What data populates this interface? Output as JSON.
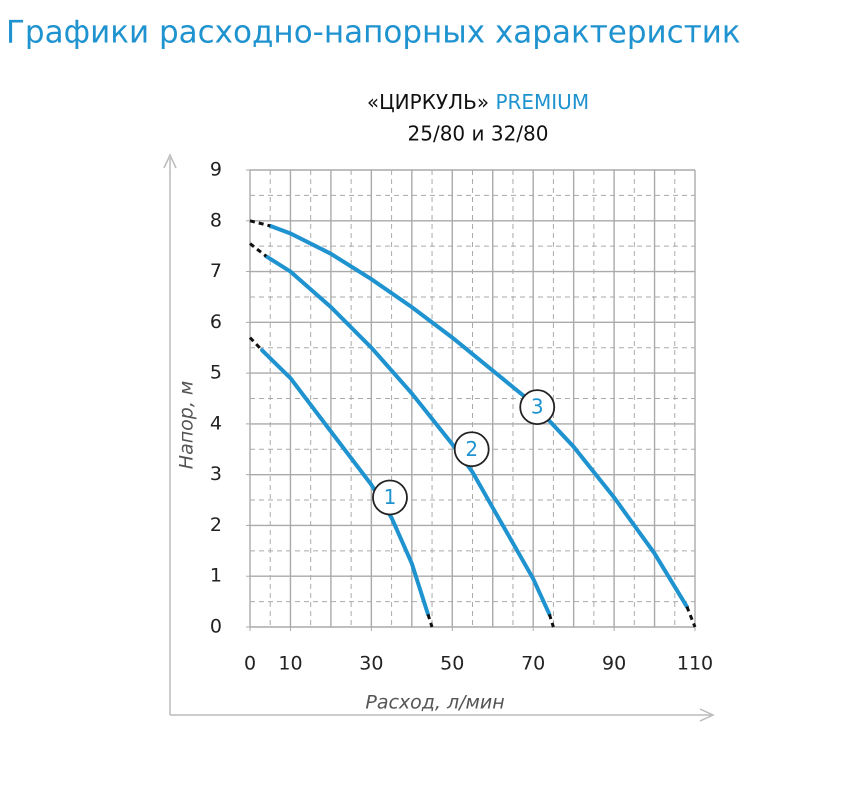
{
  "page_title": "Графики расходно-напорных характеристик",
  "chart_data": {
    "type": "line",
    "title_parts": [
      "«ЦИРКУЛЬ»",
      "PREMIUM"
    ],
    "subtitle": "25/80 и 32/80",
    "x_label": "Расход, л/мин",
    "y_label": "Напор, м",
    "xlim": [
      0,
      110
    ],
    "ylim": [
      0,
      9
    ],
    "xticks": [
      0,
      10,
      30,
      50,
      70,
      90,
      110
    ],
    "yticks": [
      0,
      1,
      2,
      3,
      4,
      5,
      6,
      7,
      8,
      9
    ],
    "highlight_ytick": 8,
    "grid": true,
    "series": [
      {
        "name": "1",
        "color": "#1f93cf",
        "label_x": 34.6,
        "label_y": 2.55,
        "x": [
          0,
          3,
          10,
          20,
          30,
          35,
          40,
          44,
          45
        ],
        "values": [
          5.7,
          5.45,
          4.9,
          3.85,
          2.8,
          2.15,
          1.25,
          0.25,
          0
        ]
      },
      {
        "name": "2",
        "color": "#1f93cf",
        "label_x": 54.8,
        "label_y": 3.5,
        "x": [
          0,
          4,
          10,
          20,
          30,
          40,
          50,
          55,
          60,
          65,
          70,
          74,
          75
        ],
        "values": [
          7.55,
          7.3,
          7.0,
          6.3,
          5.5,
          4.6,
          3.6,
          3.05,
          2.35,
          1.65,
          0.95,
          0.25,
          0
        ]
      },
      {
        "name": "3",
        "color": "#1f93cf",
        "label_x": 71,
        "label_y": 4.33,
        "x": [
          0,
          5,
          10,
          20,
          30,
          40,
          50,
          60,
          70,
          80,
          90,
          100,
          108,
          110
        ],
        "values": [
          8.0,
          7.9,
          7.75,
          7.35,
          6.85,
          6.3,
          5.7,
          5.05,
          4.4,
          3.55,
          2.55,
          1.45,
          0.4,
          0
        ]
      }
    ]
  }
}
